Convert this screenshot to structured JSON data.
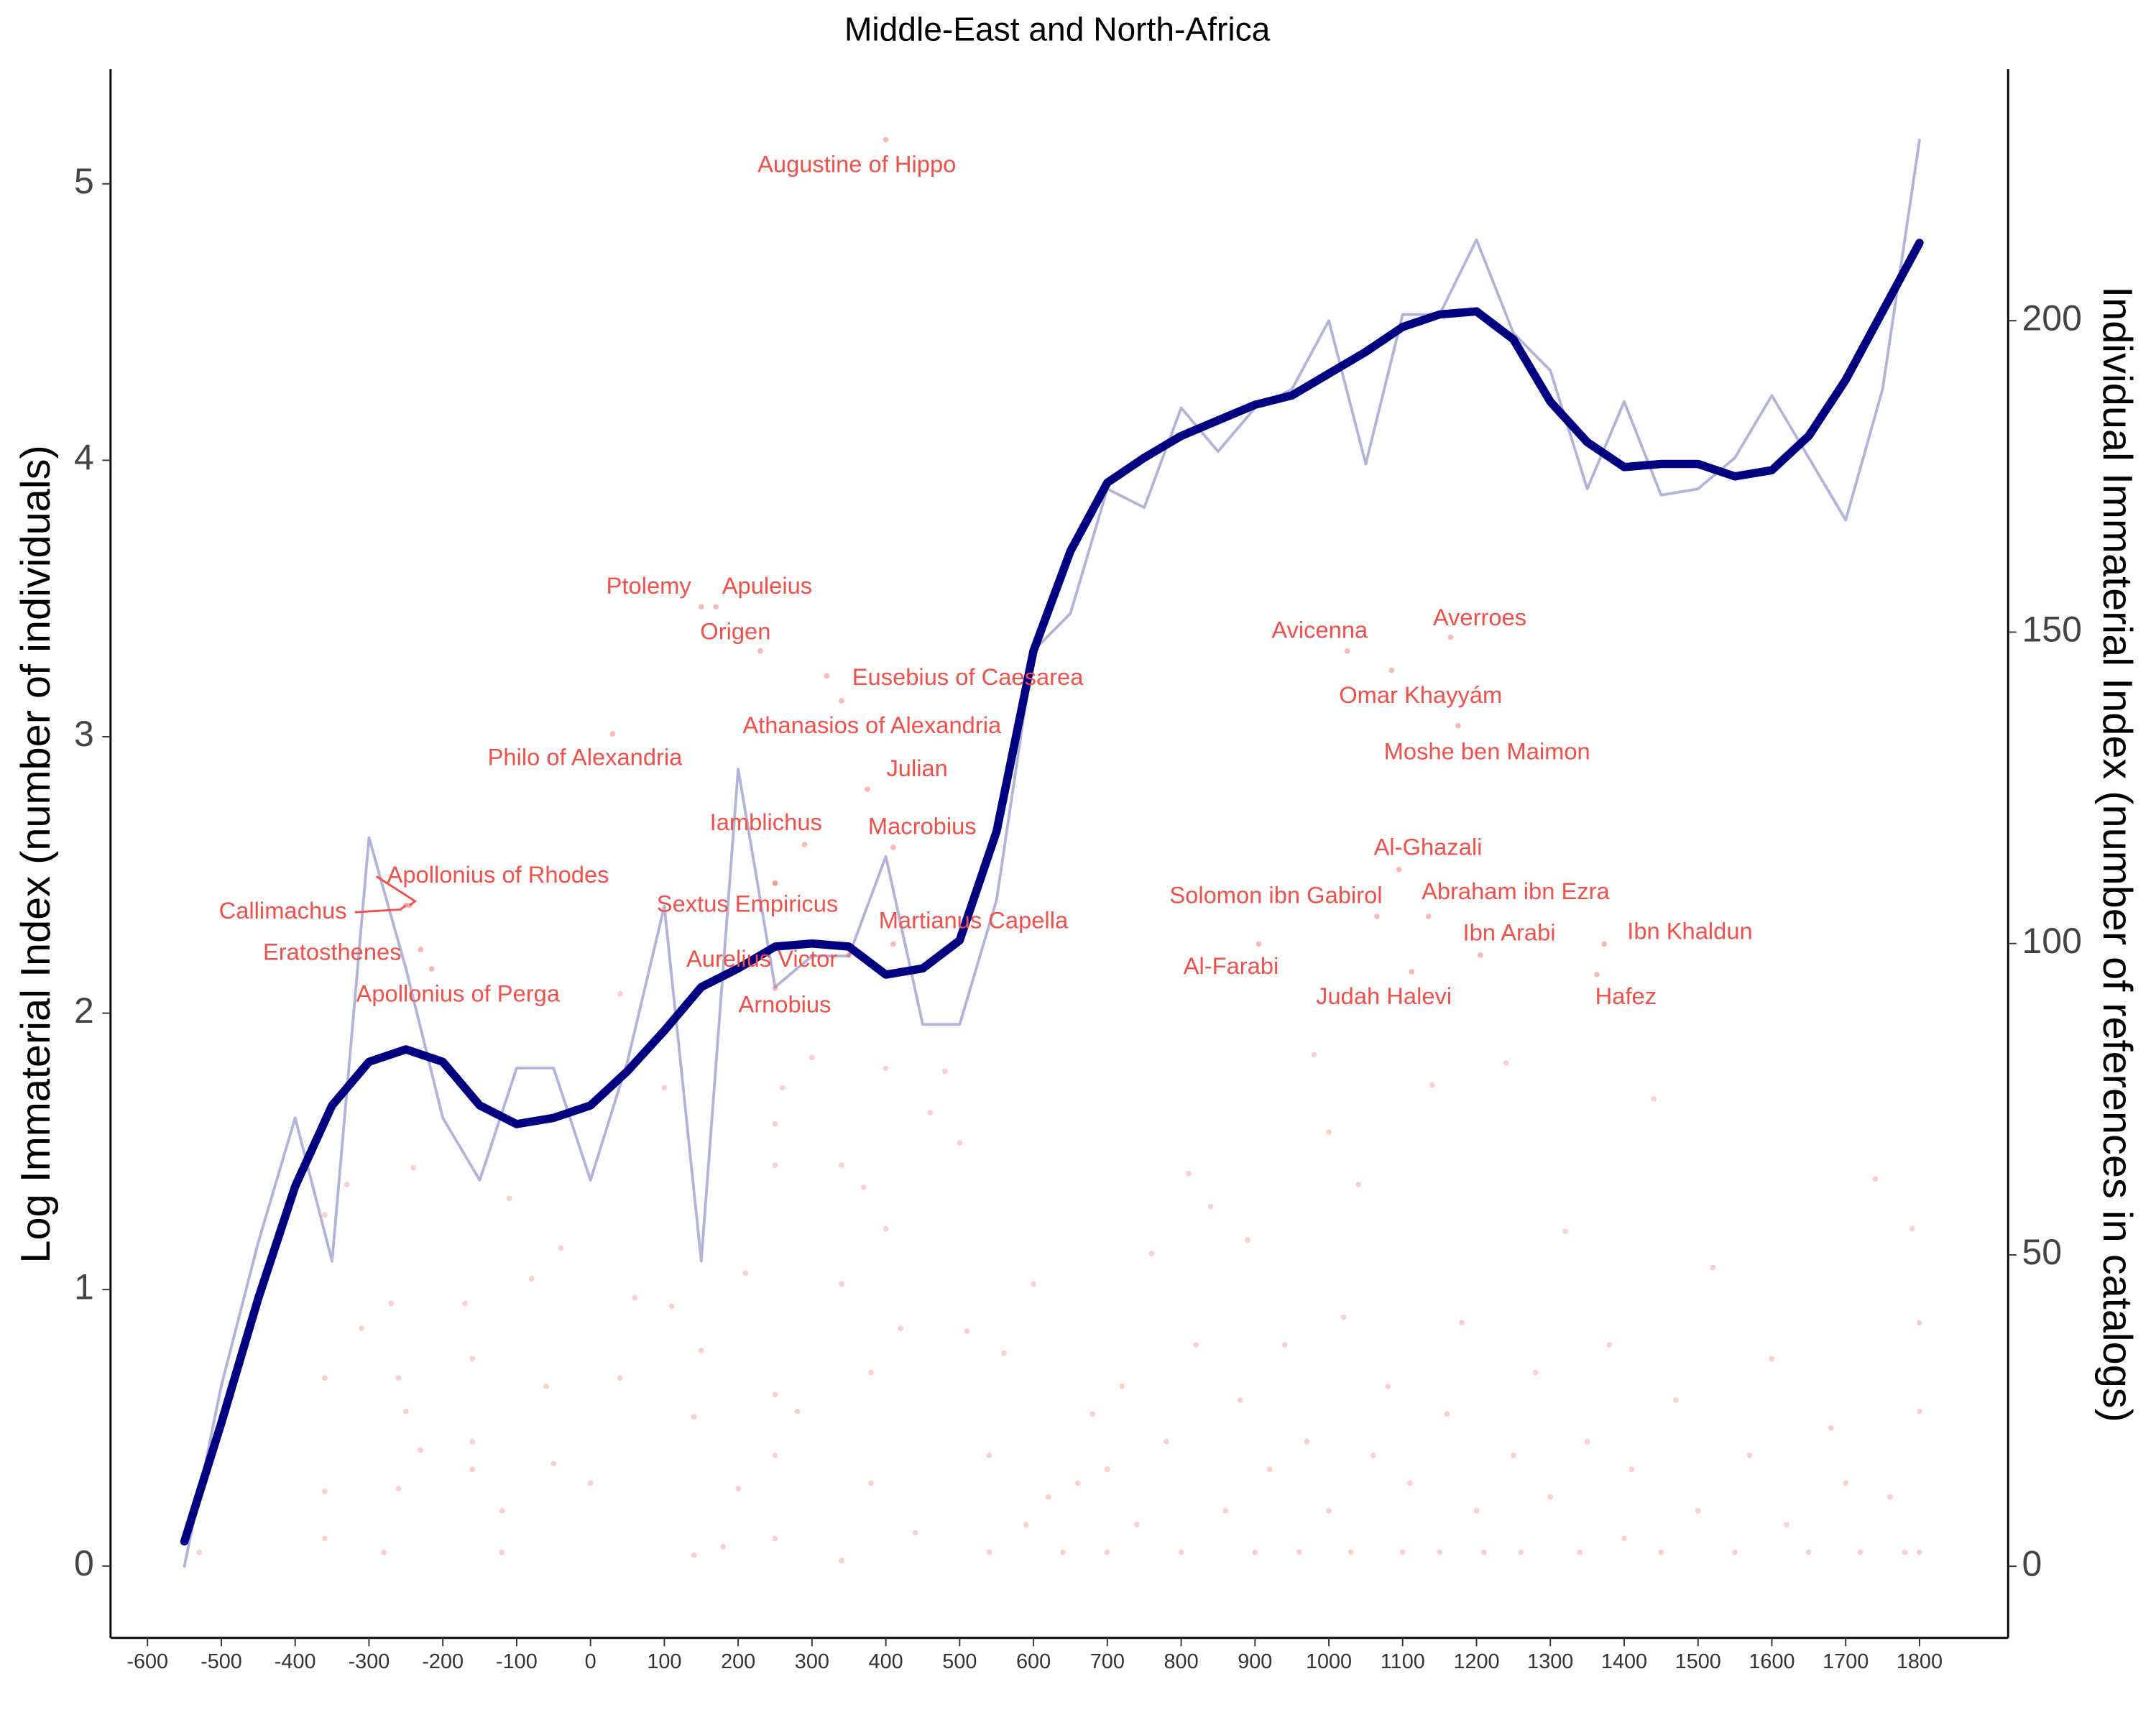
{
  "chart_data": {
    "type": "line",
    "title": "Middle-East and North-Africa",
    "y_label": "Log Immaterial Index (number of individuals)",
    "y2_label": "Individual Immaterial Index (number of references in catalogs)",
    "xlim": [
      -650,
      1920
    ],
    "xticks": [
      -600,
      -500,
      -400,
      -300,
      -200,
      -100,
      0,
      100,
      200,
      300,
      400,
      500,
      600,
      700,
      800,
      900,
      1000,
      1100,
      1200,
      1300,
      1400,
      1500,
      1600,
      1700,
      1800
    ],
    "ylim": [
      -0.26,
      5.415
    ],
    "yticks": [
      0,
      1,
      2,
      3,
      4,
      5
    ],
    "y2lim": [
      -11.5,
      240.4
    ],
    "y2ticks": [
      0,
      50,
      100,
      150,
      200
    ],
    "series": [
      {
        "color": "#b3b3da",
        "axis": "y2",
        "x": [
          -550,
          -500,
          -450,
          -400,
          -350,
          -300,
          -250,
          -200,
          -150,
          -100,
          -50,
          0,
          50,
          100,
          150,
          200,
          250,
          300,
          350,
          400,
          450,
          500,
          550,
          600,
          650,
          700,
          750,
          800,
          850,
          900,
          950,
          1000,
          1050,
          1100,
          1150,
          1200,
          1250,
          1300,
          1350,
          1400,
          1450,
          1500,
          1550,
          1600,
          1650,
          1700,
          1750,
          1800
        ],
        "values": [
          0,
          29,
          52,
          72,
          49,
          117,
          96,
          72,
          62,
          80,
          80,
          62,
          81,
          106,
          49,
          128,
          93,
          98,
          98,
          114,
          87,
          87,
          107,
          147,
          153,
          173,
          170,
          186,
          179,
          186,
          189,
          200,
          177,
          201,
          201,
          213,
          198,
          192,
          173,
          187,
          172,
          173,
          178,
          188,
          178,
          168,
          189,
          229
        ]
      },
      {
        "color": "#000080",
        "axis": "y2",
        "x": [
          -550,
          -500,
          -450,
          -400,
          -350,
          -300,
          -250,
          -200,
          -150,
          -100,
          -50,
          0,
          50,
          100,
          150,
          200,
          250,
          300,
          350,
          400,
          450,
          500,
          550,
          600,
          650,
          700,
          750,
          800,
          850,
          900,
          950,
          1000,
          1050,
          1100,
          1150,
          1200,
          1250,
          1300,
          1350,
          1400,
          1450,
          1500,
          1550,
          1600,
          1650,
          1700,
          1750,
          1800
        ],
        "values": [
          4,
          23,
          43,
          61,
          74,
          81,
          83,
          81,
          74,
          71,
          72,
          74,
          79.5,
          86,
          93,
          96,
          99.5,
          100,
          99.5,
          95,
          96,
          100.5,
          118,
          147,
          163,
          174,
          178,
          181.5,
          184,
          186.5,
          188,
          191.5,
          195,
          199,
          201,
          201.5,
          197,
          187,
          180.5,
          176.5,
          177,
          177,
          175,
          176,
          181.5,
          190.5,
          201.5,
          212.5
        ]
      }
    ],
    "points": {
      "color": "#f8766d",
      "x": [
        -530,
        -360,
        -360,
        -360,
        -360,
        -330,
        -310,
        -280,
        -270,
        -260,
        -260,
        -250,
        -240,
        -230,
        -170,
        -160,
        -160,
        -160,
        -120,
        -120,
        -110,
        -80,
        -60,
        -50,
        -40,
        0,
        40,
        40,
        60,
        100,
        110,
        140,
        140,
        150,
        180,
        200,
        210,
        250,
        250,
        250,
        250,
        250,
        250,
        260,
        280,
        300,
        340,
        340,
        340,
        370,
        380,
        380,
        400,
        400,
        420,
        440,
        460,
        480,
        500,
        510,
        540,
        540,
        560,
        590,
        600,
        620,
        640,
        660,
        680,
        700,
        700,
        720,
        740,
        760,
        780,
        800,
        810,
        820,
        840,
        860,
        880,
        890,
        900,
        920,
        940,
        960,
        970,
        980,
        1000,
        1000,
        1020,
        1030,
        1040,
        1060,
        1080,
        1100,
        1110,
        1140,
        1150,
        1160,
        1180,
        1200,
        1210,
        1240,
        1250,
        1260,
        1280,
        1300,
        1320,
        1340,
        1350,
        1380,
        1400,
        1410,
        1440,
        1450,
        1470,
        1500,
        1520,
        1550,
        1570,
        1600,
        1620,
        1650,
        1680,
        1700,
        1720,
        1740,
        1760,
        1780,
        1800,
        1800,
        1800,
        1790
      ],
      "values": [
        0.05,
        0.1,
        0.27,
        0.68,
        1.27,
        1.38,
        0.86,
        0.05,
        0.95,
        0.68,
        0.28,
        0.56,
        1.44,
        0.42,
        0.95,
        0.75,
        0.45,
        0.35,
        0.05,
        0.2,
        1.33,
        1.04,
        0.65,
        0.37,
        1.15,
        0.3,
        0.68,
        2.07,
        0.97,
        1.73,
        0.94,
        0.04,
        0.54,
        0.78,
        0.07,
        0.28,
        1.06,
        0.1,
        0.4,
        0.62,
        1.6,
        1.45,
        2.47,
        1.73,
        0.56,
        1.84,
        1.45,
        1.02,
        0.02,
        1.37,
        0.7,
        0.3,
        1.8,
        1.22,
        0.86,
        0.12,
        1.64,
        1.79,
        1.53,
        0.85,
        0.05,
        0.4,
        0.77,
        0.15,
        1.02,
        0.25,
        0.05,
        0.3,
        0.55,
        0.05,
        0.35,
        0.65,
        0.15,
        1.13,
        0.45,
        0.05,
        1.42,
        0.8,
        1.3,
        0.2,
        0.6,
        1.18,
        0.05,
        0.35,
        0.8,
        0.05,
        0.45,
        1.85,
        0.2,
        1.57,
        0.9,
        0.05,
        1.38,
        0.4,
        0.65,
        0.05,
        0.3,
        1.74,
        0.05,
        0.55,
        0.88,
        0.2,
        0.05,
        1.82,
        0.4,
        0.05,
        0.7,
        0.25,
        1.21,
        0.05,
        0.45,
        0.8,
        0.1,
        0.35,
        1.69,
        0.05,
        0.6,
        0.2,
        1.08,
        0.05,
        0.4,
        0.75,
        0.15,
        0.05,
        0.5,
        0.3,
        0.05,
        1.4,
        0.25,
        0.05,
        0.05,
        0.56,
        0.88,
        1.22
      ]
    },
    "labeled_points": {
      "color": "#f0504a",
      "labels": [
        "Augustine of Hippo",
        "Ptolemy",
        "Apuleius",
        "Origen",
        "Eusebius of Caesarea",
        "Athanasios of Alexandria",
        "Julian",
        "Philo of Alexandria",
        "Iamblichus",
        "Macrobius",
        "Apollonius of Rhodes",
        "Callimachus",
        "Eratosthenes",
        "Apollonius of Perga",
        "Sextus Empiricus",
        "Martianus Capella",
        "Aurelius Victor",
        "Arnobius",
        "Avicenna",
        "Averroes",
        "Omar Khayyám",
        "Moshe ben Maimon",
        "Al-Ghazali",
        "Solomon ibn Gabirol",
        "Abraham ibn Ezra",
        "Ibn Arabi",
        "Ibn Khaldun",
        "Al-Farabi",
        "Judah Halevi",
        "Hafez"
      ],
      "x": [
        400,
        150,
        170,
        230,
        320,
        340,
        375,
        30,
        290,
        410,
        -245,
        -250,
        -230,
        -215,
        250,
        410,
        350,
        250,
        1025,
        1165,
        1085,
        1175,
        1095,
        1065,
        1135,
        1205,
        1373,
        905,
        1112,
        1363
      ],
      "values": [
        5.16,
        3.47,
        3.47,
        3.31,
        3.22,
        3.13,
        2.81,
        3.01,
        2.61,
        2.6,
        2.39,
        2.39,
        2.23,
        2.16,
        2.47,
        2.25,
        2.21,
        2.09,
        3.31,
        3.36,
        3.24,
        3.04,
        2.52,
        2.35,
        2.35,
        2.21,
        2.25,
        2.25,
        2.15,
        2.14
      ]
    }
  }
}
